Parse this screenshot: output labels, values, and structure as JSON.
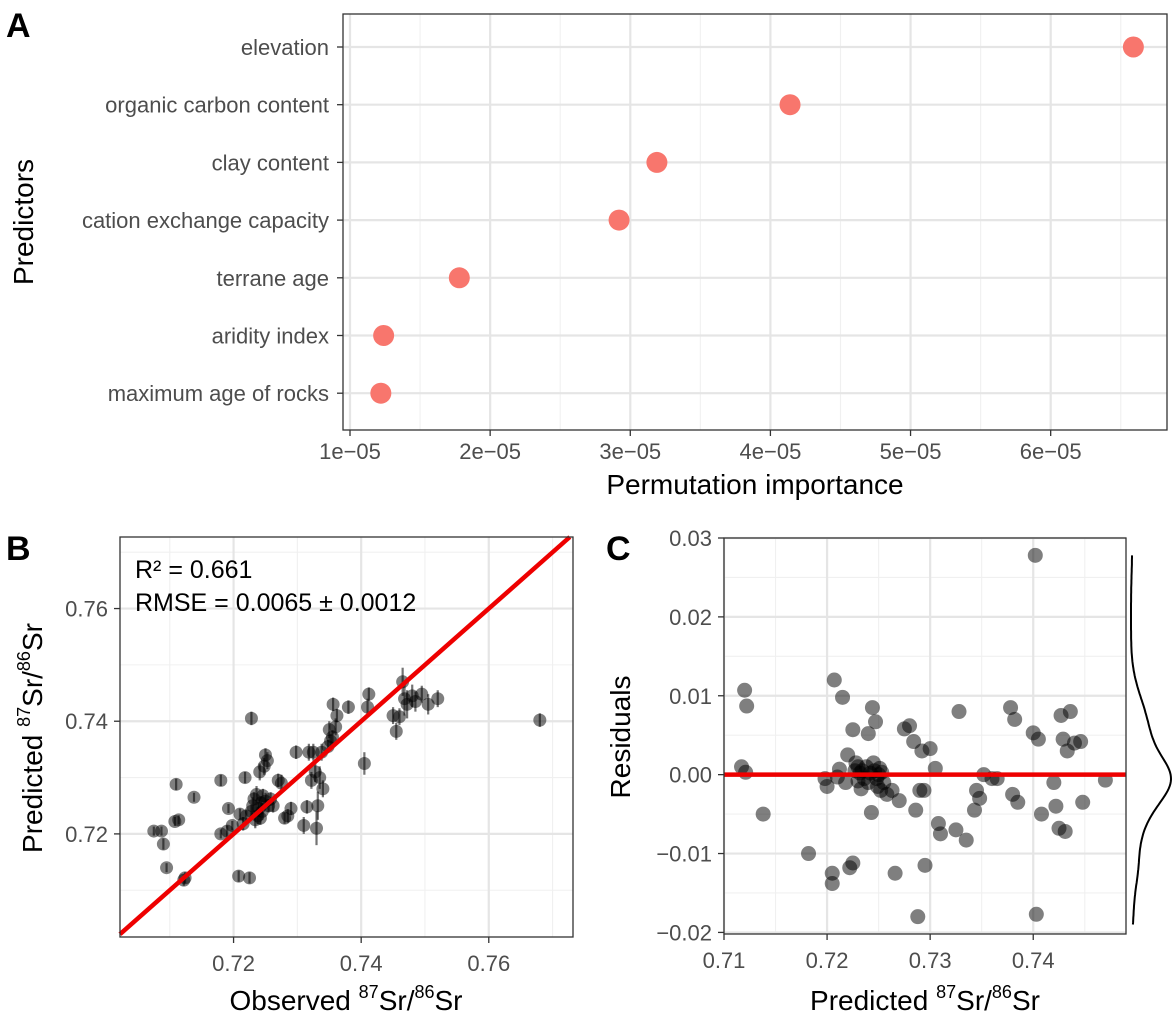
{
  "colors": {
    "importance_point": "#f8766d",
    "scatter_point": "#000000",
    "reference_line": "#ee0000",
    "grid": "#ebebeb"
  },
  "chart_data": [
    {
      "panel": "A",
      "type": "scatter",
      "xlabel": "Permutation importance",
      "ylabel": "Predictors",
      "xlim": [
        9.5e-06,
        6.83e-05
      ],
      "xticks": [
        1e-05,
        2e-05,
        3e-05,
        4e-05,
        5e-05,
        6e-05
      ],
      "xtick_labels": [
        "1e−05",
        "2e−05",
        "3e−05",
        "4e−05",
        "5e−05",
        "6e−05"
      ],
      "categories": [
        "elevation",
        "organic carbon content",
        "clay content",
        "cation exchange capacity",
        "terrane age",
        "aridity index",
        "maximum age of rocks"
      ],
      "values": [
        6.59e-05,
        4.14e-05,
        3.19e-05,
        2.92e-05,
        1.78e-05,
        1.24e-05,
        1.22e-05
      ],
      "grid": true
    },
    {
      "panel": "B",
      "type": "scatter",
      "xlabel": {
        "prefix": "Observed ",
        "sup1": "87",
        "mid": "Sr/",
        "sup2": "86",
        "suffix": "Sr"
      },
      "ylabel": {
        "prefix": "Predicted ",
        "sup1": "87",
        "mid": "Sr/",
        "sup2": "86",
        "suffix": "Sr"
      },
      "xlim": [
        0.7022,
        0.7732
      ],
      "ylim": [
        0.7017,
        0.7727
      ],
      "xticks": [
        0.72,
        0.74,
        0.76
      ],
      "xtick_labels": [
        "0.72",
        "0.74",
        "0.76"
      ],
      "yticks": [
        0.72,
        0.74,
        0.76
      ],
      "ytick_labels": [
        "0.72",
        "0.74",
        "0.76"
      ],
      "annotation_r2": "R² =  0.661",
      "annotation_rmse": "RMSE =  0.0065 ± 0.0012",
      "reference_line": "y = x",
      "grid": true,
      "points": [
        {
          "x": 0.7075,
          "y": 0.7205,
          "err": 0.0008
        },
        {
          "x": 0.7087,
          "y": 0.7205,
          "err": 0.0008
        },
        {
          "x": 0.709,
          "y": 0.7182,
          "err": 0.001
        },
        {
          "x": 0.7095,
          "y": 0.714,
          "err": 0.0008
        },
        {
          "x": 0.7108,
          "y": 0.7222,
          "err": 0.0008
        },
        {
          "x": 0.711,
          "y": 0.7288,
          "err": 0.001
        },
        {
          "x": 0.7114,
          "y": 0.7225,
          "err": 0.0008
        },
        {
          "x": 0.7122,
          "y": 0.7118,
          "err": 0.001
        },
        {
          "x": 0.7124,
          "y": 0.7122,
          "err": 0.001
        },
        {
          "x": 0.7138,
          "y": 0.7265,
          "err": 0.0008
        },
        {
          "x": 0.718,
          "y": 0.72,
          "err": 0.0008
        },
        {
          "x": 0.718,
          "y": 0.7295,
          "err": 0.001
        },
        {
          "x": 0.719,
          "y": 0.7205,
          "err": 0.001
        },
        {
          "x": 0.7192,
          "y": 0.7245,
          "err": 0.0008
        },
        {
          "x": 0.7198,
          "y": 0.7215,
          "err": 0.0008
        },
        {
          "x": 0.7208,
          "y": 0.7125,
          "err": 0.001
        },
        {
          "x": 0.721,
          "y": 0.7235,
          "err": 0.001
        },
        {
          "x": 0.7215,
          "y": 0.7218,
          "err": 0.0012
        },
        {
          "x": 0.7218,
          "y": 0.73,
          "err": 0.001
        },
        {
          "x": 0.722,
          "y": 0.7232,
          "err": 0.001
        },
        {
          "x": 0.7225,
          "y": 0.7122,
          "err": 0.001
        },
        {
          "x": 0.7228,
          "y": 0.724,
          "err": 0.0012
        },
        {
          "x": 0.7228,
          "y": 0.7405,
          "err": 0.0012
        },
        {
          "x": 0.723,
          "y": 0.725,
          "err": 0.0015
        },
        {
          "x": 0.7232,
          "y": 0.7262,
          "err": 0.0012
        },
        {
          "x": 0.7234,
          "y": 0.7225,
          "err": 0.0015
        },
        {
          "x": 0.7236,
          "y": 0.727,
          "err": 0.0015
        },
        {
          "x": 0.7238,
          "y": 0.7232,
          "err": 0.0015
        },
        {
          "x": 0.724,
          "y": 0.7245,
          "err": 0.0015
        },
        {
          "x": 0.7241,
          "y": 0.731,
          "err": 0.0015
        },
        {
          "x": 0.7242,
          "y": 0.7228,
          "err": 0.0012
        },
        {
          "x": 0.7243,
          "y": 0.7255,
          "err": 0.0012
        },
        {
          "x": 0.7245,
          "y": 0.724,
          "err": 0.0015
        },
        {
          "x": 0.7246,
          "y": 0.7268,
          "err": 0.0012
        },
        {
          "x": 0.7248,
          "y": 0.732,
          "err": 0.0015
        },
        {
          "x": 0.725,
          "y": 0.7258,
          "err": 0.0015
        },
        {
          "x": 0.725,
          "y": 0.734,
          "err": 0.0012
        },
        {
          "x": 0.7253,
          "y": 0.733,
          "err": 0.0015
        },
        {
          "x": 0.7255,
          "y": 0.725,
          "err": 0.0012
        },
        {
          "x": 0.7258,
          "y": 0.7262,
          "err": 0.0012
        },
        {
          "x": 0.7262,
          "y": 0.725,
          "err": 0.0012
        },
        {
          "x": 0.727,
          "y": 0.7295,
          "err": 0.0012
        },
        {
          "x": 0.7275,
          "y": 0.729,
          "err": 0.0015
        },
        {
          "x": 0.728,
          "y": 0.7228,
          "err": 0.001
        },
        {
          "x": 0.7285,
          "y": 0.7232,
          "err": 0.0012
        },
        {
          "x": 0.729,
          "y": 0.7245,
          "err": 0.0012
        },
        {
          "x": 0.7298,
          "y": 0.7345,
          "err": 0.0012
        },
        {
          "x": 0.731,
          "y": 0.7215,
          "err": 0.0015
        },
        {
          "x": 0.7315,
          "y": 0.7248,
          "err": 0.0012
        },
        {
          "x": 0.7318,
          "y": 0.7345,
          "err": 0.0015
        },
        {
          "x": 0.7322,
          "y": 0.7295,
          "err": 0.0015
        },
        {
          "x": 0.7325,
          "y": 0.7345,
          "err": 0.0015
        },
        {
          "x": 0.7328,
          "y": 0.731,
          "err": 0.0018
        },
        {
          "x": 0.733,
          "y": 0.721,
          "err": 0.003
        },
        {
          "x": 0.7332,
          "y": 0.725,
          "err": 0.0025
        },
        {
          "x": 0.7335,
          "y": 0.73,
          "err": 0.002
        },
        {
          "x": 0.7338,
          "y": 0.7345,
          "err": 0.0015
        },
        {
          "x": 0.734,
          "y": 0.728,
          "err": 0.0015
        },
        {
          "x": 0.7348,
          "y": 0.7355,
          "err": 0.0012
        },
        {
          "x": 0.735,
          "y": 0.7385,
          "err": 0.0015
        },
        {
          "x": 0.7352,
          "y": 0.7365,
          "err": 0.0012
        },
        {
          "x": 0.7355,
          "y": 0.7372,
          "err": 0.0012
        },
        {
          "x": 0.7356,
          "y": 0.743,
          "err": 0.0012
        },
        {
          "x": 0.736,
          "y": 0.739,
          "err": 0.0015
        },
        {
          "x": 0.7362,
          "y": 0.741,
          "err": 0.0012
        },
        {
          "x": 0.738,
          "y": 0.7425,
          "err": 0.0012
        },
        {
          "x": 0.7405,
          "y": 0.7325,
          "err": 0.002
        },
        {
          "x": 0.741,
          "y": 0.7425,
          "err": 0.0015
        },
        {
          "x": 0.7412,
          "y": 0.7448,
          "err": 0.0012
        },
        {
          "x": 0.745,
          "y": 0.741,
          "err": 0.0015
        },
        {
          "x": 0.7455,
          "y": 0.7382,
          "err": 0.0015
        },
        {
          "x": 0.746,
          "y": 0.7408,
          "err": 0.0015
        },
        {
          "x": 0.7465,
          "y": 0.747,
          "err": 0.0025
        },
        {
          "x": 0.7468,
          "y": 0.744,
          "err": 0.003
        },
        {
          "x": 0.7472,
          "y": 0.743,
          "err": 0.0025
        },
        {
          "x": 0.748,
          "y": 0.7445,
          "err": 0.002
        },
        {
          "x": 0.7485,
          "y": 0.7435,
          "err": 0.0018
        },
        {
          "x": 0.7495,
          "y": 0.7448,
          "err": 0.0015
        },
        {
          "x": 0.7505,
          "y": 0.743,
          "err": 0.0018
        },
        {
          "x": 0.752,
          "y": 0.744,
          "err": 0.0015
        },
        {
          "x": 0.768,
          "y": 0.7402,
          "err": 0.0012
        }
      ]
    },
    {
      "panel": "C",
      "type": "scatter",
      "xlabel": {
        "prefix": "Predicted ",
        "sup1": "87",
        "mid": "Sr/",
        "sup2": "86",
        "suffix": "Sr"
      },
      "ylabel": "Residuals",
      "xlim": [
        0.71,
        0.749
      ],
      "ylim": [
        -0.0202,
        0.03
      ],
      "xticks": [
        0.71,
        0.72,
        0.73,
        0.74
      ],
      "xtick_labels": [
        "0.71",
        "0.72",
        "0.73",
        "0.74"
      ],
      "yticks": [
        -0.02,
        -0.01,
        0.0,
        0.01,
        0.02,
        0.03
      ],
      "ytick_labels": [
        "−0.02",
        "−0.01",
        "0.00",
        "0.01",
        "0.02",
        "0.03"
      ],
      "reference_line": "y = 0",
      "marginal_density": "residuals",
      "grid": true,
      "points": [
        {
          "x": 0.7117,
          "y": 0.001
        },
        {
          "x": 0.712,
          "y": 0.0107
        },
        {
          "x": 0.7122,
          "y": 0.0087
        },
        {
          "x": 0.7121,
          "y": 0.0003
        },
        {
          "x": 0.7138,
          "y": -0.005
        },
        {
          "x": 0.7182,
          "y": -0.01
        },
        {
          "x": 0.7198,
          "y": -0.0005
        },
        {
          "x": 0.72,
          "y": -0.0015
        },
        {
          "x": 0.7205,
          "y": -0.0125
        },
        {
          "x": 0.7205,
          "y": -0.0138
        },
        {
          "x": 0.7207,
          "y": 0.012
        },
        {
          "x": 0.721,
          "y": -0.0003
        },
        {
          "x": 0.7212,
          "y": 0.0007
        },
        {
          "x": 0.7215,
          "y": 0.0098
        },
        {
          "x": 0.7218,
          "y": -0.001
        },
        {
          "x": 0.722,
          "y": 0.0025
        },
        {
          "x": 0.7222,
          "y": -0.0118
        },
        {
          "x": 0.7225,
          "y": -0.0112
        },
        {
          "x": 0.7225,
          "y": 0.0057
        },
        {
          "x": 0.7227,
          "y": 0.0005
        },
        {
          "x": 0.7228,
          "y": 0.0015
        },
        {
          "x": 0.723,
          "y": 0.001
        },
        {
          "x": 0.723,
          "y": -0.0008
        },
        {
          "x": 0.7232,
          "y": 0.0002
        },
        {
          "x": 0.7233,
          "y": -0.0018
        },
        {
          "x": 0.7234,
          "y": 0.0005
        },
        {
          "x": 0.7236,
          "y": -0.0005
        },
        {
          "x": 0.7238,
          "y": 0.001
        },
        {
          "x": 0.724,
          "y": 0.0052
        },
        {
          "x": 0.724,
          "y": -0.001
        },
        {
          "x": 0.7242,
          "y": 0.0002
        },
        {
          "x": 0.7243,
          "y": -0.0048
        },
        {
          "x": 0.7244,
          "y": 0.0085
        },
        {
          "x": 0.7245,
          "y": 0.0015
        },
        {
          "x": 0.7246,
          "y": 0.0005
        },
        {
          "x": 0.7247,
          "y": 0.0067
        },
        {
          "x": 0.7248,
          "y": -0.0005
        },
        {
          "x": 0.7249,
          "y": -0.0015
        },
        {
          "x": 0.725,
          "y": 0.0
        },
        {
          "x": 0.7251,
          "y": 0.0008
        },
        {
          "x": 0.7252,
          "y": -0.002
        },
        {
          "x": 0.7253,
          "y": 0.0003
        },
        {
          "x": 0.7255,
          "y": -0.001
        },
        {
          "x": 0.7258,
          "y": -0.0025
        },
        {
          "x": 0.7263,
          "y": -0.002
        },
        {
          "x": 0.7266,
          "y": -0.0125
        },
        {
          "x": 0.727,
          "y": -0.0033
        },
        {
          "x": 0.7275,
          "y": 0.0058
        },
        {
          "x": 0.728,
          "y": 0.0062
        },
        {
          "x": 0.7284,
          "y": 0.0042
        },
        {
          "x": 0.7286,
          "y": -0.0045
        },
        {
          "x": 0.7288,
          "y": -0.018
        },
        {
          "x": 0.729,
          "y": -0.002
        },
        {
          "x": 0.7292,
          "y": 0.003
        },
        {
          "x": 0.7294,
          "y": -0.002
        },
        {
          "x": 0.7295,
          "y": -0.0115
        },
        {
          "x": 0.73,
          "y": 0.0033
        },
        {
          "x": 0.7305,
          "y": 0.0008
        },
        {
          "x": 0.7308,
          "y": -0.0062
        },
        {
          "x": 0.731,
          "y": -0.0075
        },
        {
          "x": 0.7325,
          "y": -0.007
        },
        {
          "x": 0.7328,
          "y": 0.008
        },
        {
          "x": 0.7335,
          "y": -0.0083
        },
        {
          "x": 0.7343,
          "y": -0.0045
        },
        {
          "x": 0.7345,
          "y": -0.002
        },
        {
          "x": 0.7348,
          "y": -0.003
        },
        {
          "x": 0.7352,
          "y": 0.0
        },
        {
          "x": 0.736,
          "y": -0.0005
        },
        {
          "x": 0.7365,
          "y": -0.0005
        },
        {
          "x": 0.7378,
          "y": 0.0085
        },
        {
          "x": 0.738,
          "y": -0.0025
        },
        {
          "x": 0.7382,
          "y": 0.007
        },
        {
          "x": 0.7385,
          "y": -0.0035
        },
        {
          "x": 0.74,
          "y": 0.0053
        },
        {
          "x": 0.7402,
          "y": 0.0278
        },
        {
          "x": 0.7403,
          "y": -0.0177
        },
        {
          "x": 0.7405,
          "y": 0.0045
        },
        {
          "x": 0.7408,
          "y": -0.005
        },
        {
          "x": 0.742,
          "y": -0.001
        },
        {
          "x": 0.7422,
          "y": -0.004
        },
        {
          "x": 0.7425,
          "y": -0.0068
        },
        {
          "x": 0.7427,
          "y": 0.0075
        },
        {
          "x": 0.7429,
          "y": 0.0045
        },
        {
          "x": 0.7431,
          "y": -0.0072
        },
        {
          "x": 0.7433,
          "y": 0.003
        },
        {
          "x": 0.7436,
          "y": 0.008
        },
        {
          "x": 0.744,
          "y": 0.004
        },
        {
          "x": 0.7446,
          "y": 0.0042
        },
        {
          "x": 0.7448,
          "y": -0.0035
        },
        {
          "x": 0.747,
          "y": -0.0007
        }
      ]
    }
  ]
}
